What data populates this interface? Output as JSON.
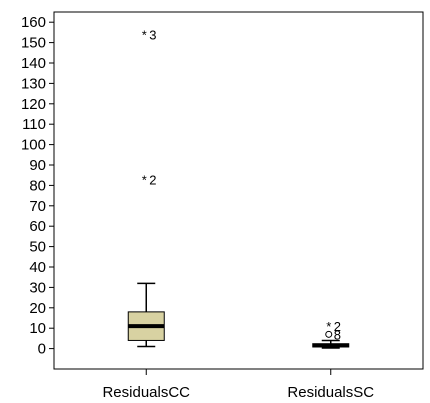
{
  "chart_data": {
    "type": "boxplot",
    "categories": [
      "ResidualsCC",
      "ResidualsSC"
    ],
    "ylim": [
      -10,
      165
    ],
    "yticks": [
      0,
      10,
      20,
      30,
      40,
      50,
      60,
      70,
      80,
      90,
      100,
      110,
      120,
      130,
      140,
      150,
      160
    ],
    "grid": false,
    "boxes": [
      {
        "name": "ResidualsCC",
        "whisker_low": 1,
        "q1": 4,
        "median": 11,
        "q3": 18,
        "whisker_high": 32,
        "outliers": [
          {
            "value": 154,
            "marker": "*",
            "label": "3"
          },
          {
            "value": 83,
            "marker": "*",
            "label": "2"
          }
        ]
      },
      {
        "name": "ResidualsSC",
        "whisker_low": 0.3,
        "q1": 0.8,
        "median": 1.5,
        "q3": 2.4,
        "whisker_high": 4,
        "outliers": [
          {
            "value": 11,
            "marker": "*",
            "label": "2"
          },
          {
            "value": 7,
            "marker": "o",
            "label": "8"
          }
        ]
      }
    ],
    "colors": {
      "box_fill": "#d8d2a2",
      "box_stroke": "#000000",
      "axis": "#000000"
    }
  }
}
